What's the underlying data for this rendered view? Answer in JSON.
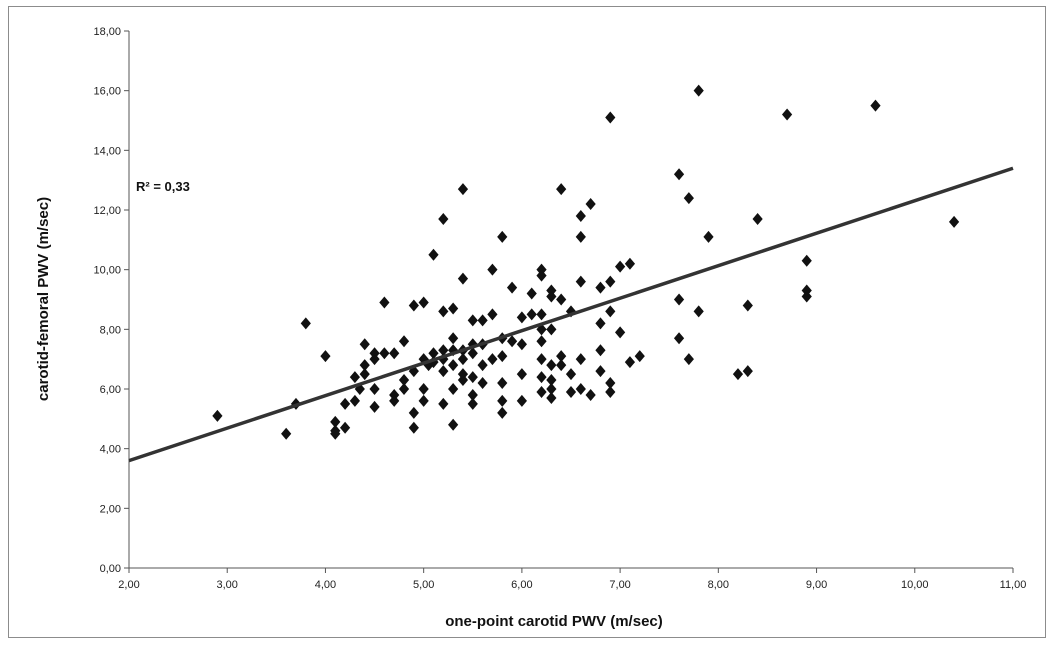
{
  "chart_data": {
    "type": "scatter",
    "title": "",
    "xlabel": "one-point carotid PWV (m/sec)",
    "ylabel": "carotid-femoral PWV (m/sec)",
    "xlim": [
      2,
      11
    ],
    "ylim": [
      0,
      18
    ],
    "x_ticks": [
      "2,00",
      "3,00",
      "4,00",
      "5,00",
      "6,00",
      "7,00",
      "8,00",
      "9,00",
      "10,00",
      "11,00"
    ],
    "y_ticks": [
      "0,00",
      "2,00",
      "4,00",
      "6,00",
      "8,00",
      "10,00",
      "12,00",
      "14,00",
      "16,00",
      "18,00"
    ],
    "grid": false,
    "legend": "none",
    "annotation": "R² = 0,33",
    "marker_color": "#111111",
    "trendline": {
      "type": "linear",
      "x": [
        2.0,
        11.0
      ],
      "y": [
        3.6,
        13.4
      ],
      "color": "#333333"
    },
    "series": [
      {
        "points": [
          [
            2.9,
            5.1
          ],
          [
            3.6,
            4.5
          ],
          [
            3.7,
            5.5
          ],
          [
            3.8,
            8.2
          ],
          [
            4.0,
            7.1
          ],
          [
            4.1,
            4.9
          ],
          [
            4.1,
            4.6
          ],
          [
            4.1,
            4.5
          ],
          [
            4.2,
            4.7
          ],
          [
            4.2,
            5.5
          ],
          [
            4.3,
            5.6
          ],
          [
            4.3,
            6.4
          ],
          [
            4.35,
            6.0
          ],
          [
            4.4,
            6.5
          ],
          [
            4.4,
            6.8
          ],
          [
            4.4,
            7.5
          ],
          [
            4.5,
            5.4
          ],
          [
            4.5,
            6.0
          ],
          [
            4.5,
            7.0
          ],
          [
            4.5,
            7.2
          ],
          [
            4.6,
            8.9
          ],
          [
            4.6,
            7.2
          ],
          [
            4.7,
            5.8
          ],
          [
            4.7,
            5.6
          ],
          [
            4.7,
            7.2
          ],
          [
            4.8,
            6.0
          ],
          [
            4.8,
            6.3
          ],
          [
            4.8,
            7.6
          ],
          [
            4.9,
            5.2
          ],
          [
            4.9,
            4.7
          ],
          [
            4.9,
            6.6
          ],
          [
            4.9,
            8.8
          ],
          [
            5.0,
            5.6
          ],
          [
            5.0,
            6.0
          ],
          [
            5.0,
            7.0
          ],
          [
            5.0,
            8.9
          ],
          [
            5.05,
            6.8
          ],
          [
            5.1,
            6.9
          ],
          [
            5.1,
            10.5
          ],
          [
            5.1,
            7.2
          ],
          [
            5.2,
            5.5
          ],
          [
            5.2,
            6.6
          ],
          [
            5.2,
            7.0
          ],
          [
            5.2,
            7.3
          ],
          [
            5.2,
            8.6
          ],
          [
            5.2,
            11.7
          ],
          [
            5.3,
            4.8
          ],
          [
            5.3,
            6.0
          ],
          [
            5.3,
            6.8
          ],
          [
            5.3,
            7.3
          ],
          [
            5.3,
            7.7
          ],
          [
            5.3,
            8.7
          ],
          [
            5.4,
            6.3
          ],
          [
            5.4,
            6.5
          ],
          [
            5.4,
            7.0
          ],
          [
            5.4,
            7.3
          ],
          [
            5.4,
            9.7
          ],
          [
            5.4,
            12.7
          ],
          [
            5.5,
            5.5
          ],
          [
            5.5,
            5.8
          ],
          [
            5.5,
            6.4
          ],
          [
            5.5,
            7.2
          ],
          [
            5.5,
            7.5
          ],
          [
            5.5,
            8.3
          ],
          [
            5.6,
            6.2
          ],
          [
            5.6,
            6.8
          ],
          [
            5.6,
            7.5
          ],
          [
            5.6,
            8.3
          ],
          [
            5.7,
            7.0
          ],
          [
            5.7,
            8.5
          ],
          [
            5.7,
            10.0
          ],
          [
            5.8,
            5.2
          ],
          [
            5.8,
            5.6
          ],
          [
            5.8,
            6.2
          ],
          [
            5.8,
            7.1
          ],
          [
            5.8,
            7.7
          ],
          [
            5.8,
            11.1
          ],
          [
            5.9,
            7.6
          ],
          [
            5.9,
            9.4
          ],
          [
            6.0,
            5.6
          ],
          [
            6.0,
            6.5
          ],
          [
            6.0,
            7.5
          ],
          [
            6.0,
            8.4
          ],
          [
            6.1,
            8.5
          ],
          [
            6.1,
            9.2
          ],
          [
            6.2,
            5.9
          ],
          [
            6.2,
            6.4
          ],
          [
            6.2,
            7.0
          ],
          [
            6.2,
            7.6
          ],
          [
            6.2,
            8.0
          ],
          [
            6.2,
            8.5
          ],
          [
            6.2,
            9.8
          ],
          [
            6.2,
            10.0
          ],
          [
            6.3,
            5.7
          ],
          [
            6.3,
            6.0
          ],
          [
            6.3,
            6.3
          ],
          [
            6.3,
            6.8
          ],
          [
            6.3,
            8.0
          ],
          [
            6.3,
            9.1
          ],
          [
            6.3,
            9.3
          ],
          [
            6.4,
            6.8
          ],
          [
            6.4,
            7.1
          ],
          [
            6.4,
            9.0
          ],
          [
            6.4,
            12.7
          ],
          [
            6.5,
            5.9
          ],
          [
            6.5,
            6.5
          ],
          [
            6.5,
            8.6
          ],
          [
            6.6,
            6.0
          ],
          [
            6.6,
            7.0
          ],
          [
            6.6,
            9.6
          ],
          [
            6.6,
            11.1
          ],
          [
            6.6,
            11.8
          ],
          [
            6.7,
            5.8
          ],
          [
            6.7,
            12.2
          ],
          [
            6.8,
            6.6
          ],
          [
            6.8,
            7.3
          ],
          [
            6.8,
            8.2
          ],
          [
            6.8,
            9.4
          ],
          [
            6.9,
            5.9
          ],
          [
            6.9,
            6.2
          ],
          [
            6.9,
            8.6
          ],
          [
            6.9,
            9.6
          ],
          [
            6.9,
            15.1
          ],
          [
            7.0,
            7.9
          ],
          [
            7.0,
            10.1
          ],
          [
            7.1,
            6.9
          ],
          [
            7.1,
            10.2
          ],
          [
            7.2,
            7.1
          ],
          [
            7.6,
            7.7
          ],
          [
            7.6,
            9.0
          ],
          [
            7.6,
            13.2
          ],
          [
            7.7,
            7.0
          ],
          [
            7.7,
            12.4
          ],
          [
            7.8,
            8.6
          ],
          [
            7.8,
            16.0
          ],
          [
            7.9,
            11.1
          ],
          [
            8.2,
            6.5
          ],
          [
            8.3,
            6.6
          ],
          [
            8.3,
            8.8
          ],
          [
            8.4,
            11.7
          ],
          [
            8.7,
            15.2
          ],
          [
            8.9,
            9.1
          ],
          [
            8.9,
            9.3
          ],
          [
            8.9,
            10.3
          ],
          [
            9.6,
            15.5
          ],
          [
            10.4,
            11.6
          ]
        ]
      }
    ]
  }
}
